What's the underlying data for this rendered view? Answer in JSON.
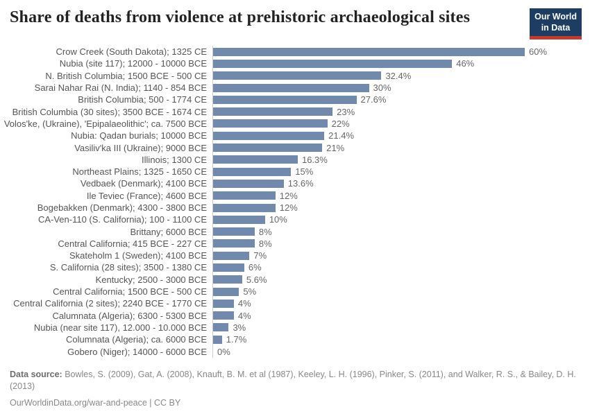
{
  "header": {
    "title": "Share of deaths from violence at prehistoric archaeological sites",
    "logo": {
      "line1": "Our World",
      "line2": "in Data"
    }
  },
  "chart_data": {
    "type": "bar",
    "orientation": "horizontal",
    "title": "Share of deaths from violence at prehistoric archaeological sites",
    "xlabel": "",
    "ylabel": "",
    "unit": "%",
    "xlim": [
      0,
      60
    ],
    "grid": false,
    "legend": "none",
    "categories": [
      "Crow Creek (South Dakota); 1325 CE",
      "Nubia (site 117); 12000 - 10000 BCE",
      "N. British Columbia; 1500 BCE - 500 CE",
      "Sarai Nahar Rai (N. India); 1140 - 854 BCE",
      "British Columbia; 500 - 1774 CE",
      "British Columbia (30 sites); 3500 BCE - 1674 CE",
      "Volos'ke, (Ukraine), 'Epipalaeolithic'; ca. 7500 BCE",
      "Nubia: Qadan burials; 10000 BCE",
      "Vasiliv'ka III (Ukraine); 9000 BCE",
      "Illinois; 1300 CE",
      "Northeast Plains; 1325 - 1650 CE",
      "Vedbaek (Denmark); 4100 BCE",
      "Ile Teviec (France); 4600 BCE",
      "Bogebakken (Denmark); 4300 - 3800 BCE",
      "CA-Ven-110 (S. California); 100 - 1100 CE",
      "Brittany; 6000 BCE",
      "Central California; 415 BCE - 227 CE",
      "Skateholm 1 (Sweden); 4100 BCE",
      "S. California (28 sites); 3500 - 1380 CE",
      "Kentucky; 2500 - 3000 BCE",
      "Central California; 1500 BCE - 500 CE",
      "Central California (2 sites); 2240 BCE - 1770 CE",
      "Calumnata (Algeria); 6300 - 5300 BCE",
      "Nubia (near site 117), 12.000 - 10.000 BCE",
      "Columnata (Algeria); ca. 6000 BCE",
      "Gobero (Niger); 14000 - 6000 BCE"
    ],
    "values": [
      60,
      46,
      32.4,
      30,
      27.6,
      23,
      22,
      21.4,
      21,
      16.3,
      15,
      13.6,
      12,
      12,
      10,
      8,
      8,
      7,
      6,
      5.6,
      5,
      4,
      4,
      3,
      1.7,
      0
    ],
    "value_labels": [
      "60%",
      "46%",
      "32.4%",
      "30%",
      "27.6%",
      "23%",
      "22%",
      "21.4%",
      "21%",
      "16.3%",
      "15%",
      "13.6%",
      "12%",
      "12%",
      "10%",
      "8%",
      "8%",
      "7%",
      "6%",
      "5.6%",
      "5%",
      "4%",
      "4%",
      "3%",
      "1.7%",
      "0%"
    ]
  },
  "footer": {
    "source_label": "Data source:",
    "source_text": " Bowles, S. (2009), Gat, A. (2008), Knauft, B. M. et al (1987), Keeley, L. H. (1996), Pinker, S. (2011), and Walker, R. S., & Bailey, D. H. (2013)",
    "citation": "OurWorldinData.org/war-and-peace | CC BY"
  },
  "colors": {
    "bar": "#7189ad",
    "title_text": "#222222",
    "label_text": "#555555",
    "value_text": "#666666",
    "axis_line": "#cccccc",
    "logo_bg": "#1d3d63",
    "logo_accent": "#c5392f",
    "footer_text": "#888888"
  }
}
